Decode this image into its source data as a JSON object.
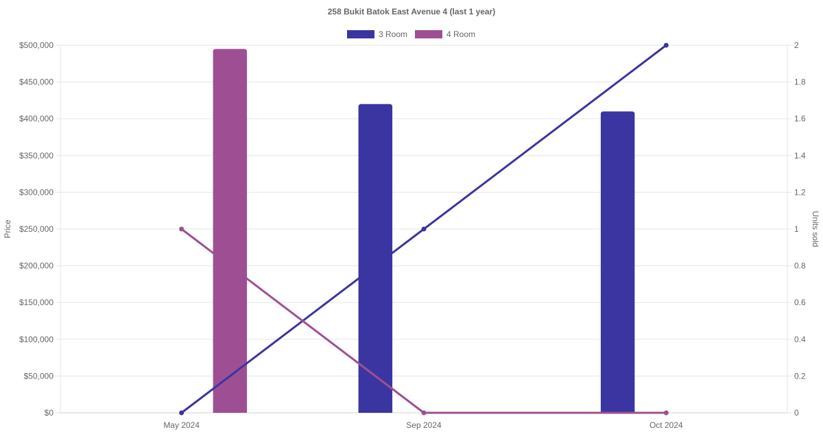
{
  "colors": {
    "three_room": "#3a35a0",
    "four_room": "#9e4f93",
    "grid": "#e5e5e5",
    "text": "#666666"
  },
  "chart_data": {
    "type": "bar",
    "title": "258 Bukit Batok East Avenue 4 (last 1 year)",
    "categories": [
      "May 2024",
      "Sep 2024",
      "Oct 2024"
    ],
    "ylabel": "Price",
    "y2label": "Units sold",
    "ylim": [
      0,
      500000
    ],
    "y2lim": [
      0,
      2
    ],
    "y_ticks": [
      "$0",
      "$50,000",
      "$100,000",
      "$150,000",
      "$200,000",
      "$250,000",
      "$300,000",
      "$350,000",
      "$400,000",
      "$450,000",
      "$500,000"
    ],
    "y2_ticks": [
      "0",
      "0.2",
      "0.4",
      "0.6",
      "0.8",
      "1",
      "1.2",
      "1.4",
      "1.6",
      "1.8",
      "2"
    ],
    "legend": [
      "3 Room",
      "4 Room"
    ],
    "legend_position": "top",
    "grid": true,
    "bar_series": [
      {
        "name": "3 Room",
        "values": [
          null,
          420000,
          410000
        ]
      },
      {
        "name": "4 Room",
        "values": [
          495000,
          null,
          null
        ]
      }
    ],
    "line_series": [
      {
        "name": "3 Room",
        "axis": "right",
        "values": [
          0,
          1,
          2
        ]
      },
      {
        "name": "4 Room",
        "axis": "right",
        "values": [
          1,
          0,
          0
        ]
      }
    ]
  }
}
